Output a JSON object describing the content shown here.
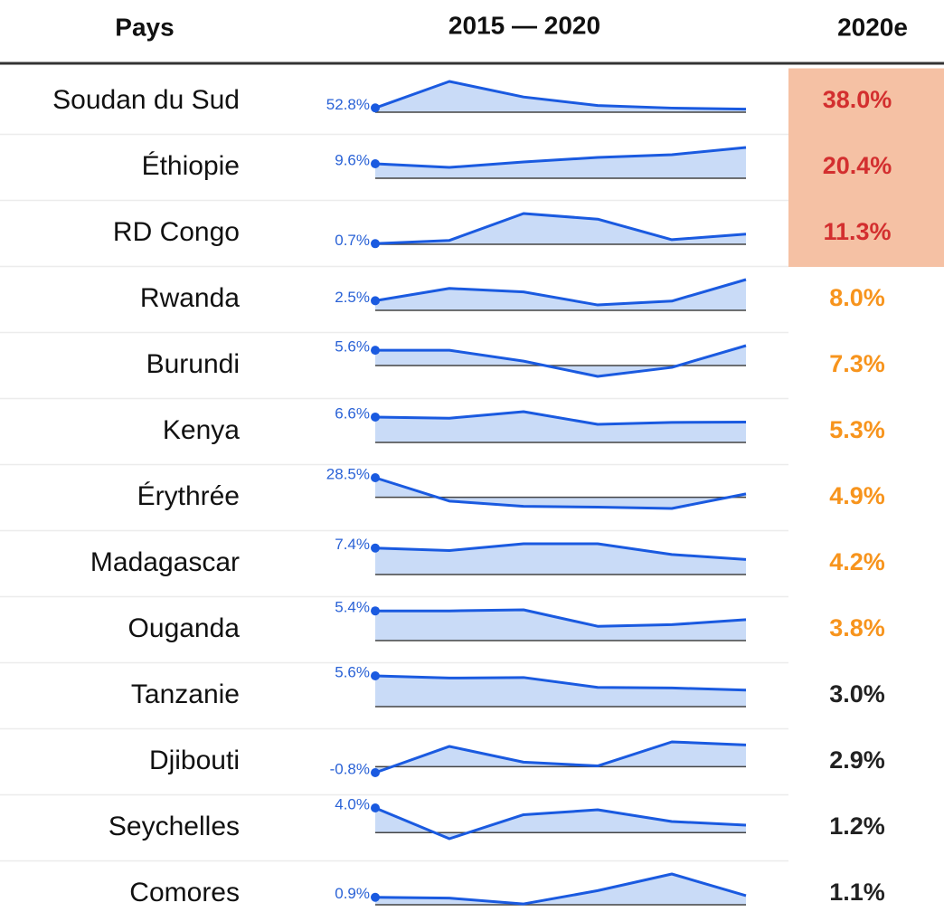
{
  "header": {
    "country": "Pays",
    "trend": "2015 — 2020",
    "estimate": "2020e"
  },
  "rows": [
    {
      "country": "Soudan du Sud",
      "trend": [
        52.8,
        380,
        188,
        83,
        51,
        38.0
      ],
      "trend_label": "52.8%",
      "estimate": "38.0%",
      "color": "#d32f2f",
      "background": "#f5c1a4"
    },
    {
      "country": "Éthiopie",
      "trend": [
        9.6,
        7.2,
        10.8,
        13.8,
        15.6,
        20.4
      ],
      "trend_label": "9.6%",
      "estimate": "20.4%",
      "color": "#d32f2f",
      "background": "#f5c1a4"
    },
    {
      "country": "RD Congo",
      "trend": [
        0.7,
        4.3,
        34.0,
        27.8,
        5.1,
        11.3
      ],
      "trend_label": "0.7%",
      "estimate": "11.3%",
      "color": "#d32f2f",
      "background": "#f5c1a4"
    },
    {
      "country": "Rwanda",
      "trend": [
        2.5,
        5.7,
        4.8,
        1.4,
        2.4,
        8.0
      ],
      "trend_label": "2.5%",
      "estimate": "8.0%",
      "color": "#f7941d"
    },
    {
      "country": "Burundi",
      "trend": [
        5.6,
        5.6,
        1.6,
        -4.0,
        -0.7,
        7.3
      ],
      "trend_label": "5.6%",
      "estimate": "7.3%",
      "color": "#f7941d"
    },
    {
      "country": "Kenya",
      "trend": [
        6.6,
        6.3,
        8.0,
        4.7,
        5.2,
        5.3
      ],
      "trend_label": "6.6%",
      "estimate": "5.3%",
      "color": "#f7941d"
    },
    {
      "country": "Érythrée",
      "trend": [
        28.5,
        -5.6,
        -13.3,
        -14.4,
        -16.4,
        4.9
      ],
      "trend_label": "28.5%",
      "estimate": "4.9%",
      "color": "#f7941d"
    },
    {
      "country": "Madagascar",
      "trend": [
        7.4,
        6.7,
        8.6,
        8.6,
        5.6,
        4.2
      ],
      "trend_label": "7.4%",
      "estimate": "4.2%",
      "color": "#f7941d"
    },
    {
      "country": "Ouganda",
      "trend": [
        5.4,
        5.4,
        5.6,
        2.6,
        2.9,
        3.8
      ],
      "trend_label": "5.4%",
      "estimate": "3.8%",
      "color": "#f7941d"
    },
    {
      "country": "Tanzanie",
      "trend": [
        5.6,
        5.2,
        5.3,
        3.5,
        3.4,
        3.0
      ],
      "trend_label": "5.6%",
      "estimate": "3.0%",
      "color": "#222222"
    },
    {
      "country": "Djibouti",
      "trend": [
        -0.8,
        2.7,
        0.6,
        0.1,
        3.3,
        2.9
      ],
      "trend_label": "-0.8%",
      "estimate": "2.9%",
      "color": "#222222"
    },
    {
      "country": "Seychelles",
      "trend": [
        4.0,
        -1.0,
        2.9,
        3.7,
        1.8,
        1.2
      ],
      "trend_label": "4.0%",
      "estimate": "1.2%",
      "color": "#222222"
    },
    {
      "country": "Comores",
      "trend": [
        0.9,
        0.8,
        0.1,
        1.7,
        3.7,
        1.1
      ],
      "trend_label": "0.9%",
      "estimate": "1.1%",
      "color": "#222222"
    }
  ]
}
